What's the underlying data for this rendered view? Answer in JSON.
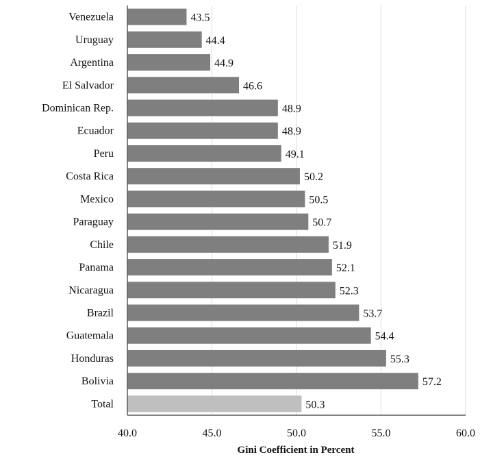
{
  "chart_data": {
    "type": "bar",
    "orientation": "horizontal",
    "categories": [
      "Venezuela",
      "Uruguay",
      "Argentina",
      "El Salvador",
      "Dominican Rep.",
      "Ecuador",
      "Peru",
      "Costa Rica",
      "Mexico",
      "Paraguay",
      "Chile",
      "Panama",
      "Nicaragua",
      "Brazil",
      "Guatemala",
      "Honduras",
      "Bolivia",
      "Total"
    ],
    "values": [
      43.5,
      44.4,
      44.9,
      46.6,
      48.9,
      48.9,
      49.1,
      50.2,
      50.5,
      50.7,
      51.9,
      52.1,
      52.3,
      53.7,
      54.4,
      55.3,
      57.2,
      50.3
    ],
    "value_labels": [
      "43.5",
      "44.4",
      "44.9",
      "46.6",
      "48.9",
      "48.9",
      "49.1",
      "50.2",
      "50.5",
      "50.7",
      "51.9",
      "52.1",
      "52.3",
      "53.7",
      "54.4",
      "55.3",
      "57.2",
      "50.3"
    ],
    "highlight": [
      "Total"
    ],
    "xlabel": "Gini Coefficient in Percent",
    "xlim": [
      40.0,
      60.0
    ],
    "xticks": [
      40.0,
      45.0,
      50.0,
      55.0,
      60.0
    ],
    "xtick_labels": [
      "40.0",
      "45.0",
      "50.0",
      "55.0",
      "60.0"
    ],
    "grid": "vertical",
    "colors": {
      "bar": "#7f7f7f",
      "highlight": "#bfbfbf",
      "grid": "#d9d9d9",
      "axis": "#595959"
    }
  }
}
